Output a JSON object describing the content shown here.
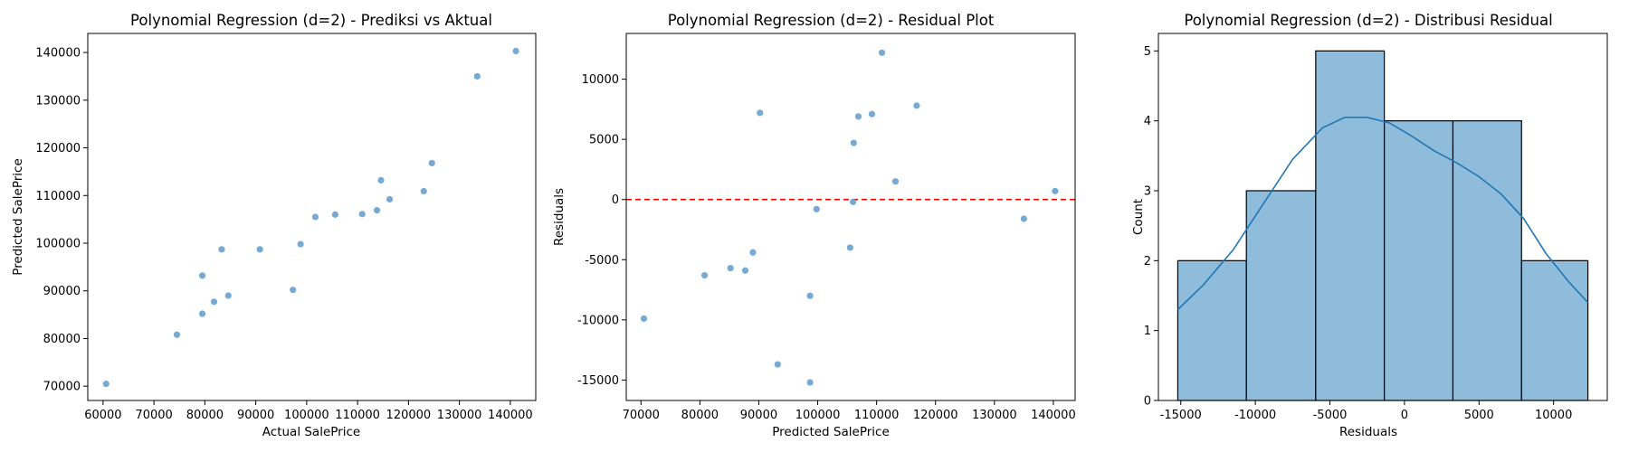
{
  "chart_data": [
    {
      "type": "scatter",
      "title": "Polynomial Regression (d=2) - Prediksi vs Aktual",
      "xlabel": "Actual SalePrice",
      "ylabel": "Predicted SalePrice",
      "xlim": [
        57000,
        145000
      ],
      "ylim": [
        67000,
        144000
      ],
      "xticks": [
        60000,
        70000,
        80000,
        90000,
        100000,
        110000,
        120000,
        130000,
        140000
      ],
      "yticks": [
        70000,
        80000,
        90000,
        100000,
        110000,
        120000,
        130000,
        140000
      ],
      "point_color": "#6fa5d2",
      "points": [
        {
          "x": 60600,
          "y": 70500
        },
        {
          "x": 74500,
          "y": 80800
        },
        {
          "x": 79500,
          "y": 85200
        },
        {
          "x": 79500,
          "y": 93200
        },
        {
          "x": 81800,
          "y": 87700
        },
        {
          "x": 83300,
          "y": 98700
        },
        {
          "x": 84600,
          "y": 89000
        },
        {
          "x": 90800,
          "y": 98700
        },
        {
          "x": 97300,
          "y": 90200
        },
        {
          "x": 98800,
          "y": 99800
        },
        {
          "x": 101700,
          "y": 105500
        },
        {
          "x": 105600,
          "y": 106000
        },
        {
          "x": 110900,
          "y": 106100
        },
        {
          "x": 113800,
          "y": 106900
        },
        {
          "x": 114600,
          "y": 113200
        },
        {
          "x": 116300,
          "y": 109200
        },
        {
          "x": 123000,
          "y": 110900
        },
        {
          "x": 124600,
          "y": 116800
        },
        {
          "x": 133500,
          "y": 135000
        },
        {
          "x": 141100,
          "y": 140300
        }
      ]
    },
    {
      "type": "scatter",
      "title": "Polynomial Regression (d=2) - Residual Plot",
      "xlabel": "Predicted SalePrice",
      "ylabel": "Residuals",
      "xlim": [
        67500,
        143700
      ],
      "ylim": [
        -16700,
        13800
      ],
      "xticks": [
        70000,
        80000,
        90000,
        100000,
        110000,
        120000,
        130000,
        140000
      ],
      "yticks": [
        -15000,
        -10000,
        -5000,
        0,
        5000,
        10000
      ],
      "point_color": "#6fa5d2",
      "reference_line": {
        "y": 0,
        "color": "#ff0000",
        "style": "dashed"
      },
      "points": [
        {
          "x": 70500,
          "y": -9900
        },
        {
          "x": 80800,
          "y": -6300
        },
        {
          "x": 85200,
          "y": -5700
        },
        {
          "x": 87700,
          "y": -5900
        },
        {
          "x": 89000,
          "y": -4400
        },
        {
          "x": 90200,
          "y": 7200
        },
        {
          "x": 93200,
          "y": -13700
        },
        {
          "x": 98700,
          "y": -15200
        },
        {
          "x": 98700,
          "y": -8000
        },
        {
          "x": 99800,
          "y": -800
        },
        {
          "x": 105500,
          "y": -4000
        },
        {
          "x": 106000,
          "y": -200
        },
        {
          "x": 106100,
          "y": 4700
        },
        {
          "x": 106900,
          "y": 6900
        },
        {
          "x": 109200,
          "y": 7100
        },
        {
          "x": 110900,
          "y": 12200
        },
        {
          "x": 113200,
          "y": 1500
        },
        {
          "x": 116800,
          "y": 7800
        },
        {
          "x": 135000,
          "y": -1600
        },
        {
          "x": 140300,
          "y": 700
        }
      ]
    },
    {
      "type": "histogram",
      "title": "Polynomial Regression (d=2) - Distribusi Residual",
      "xlabel": "Residuals",
      "ylabel": "Count",
      "xlim": [
        -16500,
        13600
      ],
      "ylim": [
        0,
        5.25
      ],
      "xticks": [
        -15000,
        -10000,
        -5000,
        0,
        5000,
        10000
      ],
      "yticks": [
        0,
        1,
        2,
        3,
        4,
        5
      ],
      "bin_edges": [
        -15200,
        -10600,
        -5950,
        -1350,
        3250,
        7850,
        12300
      ],
      "counts": [
        2,
        3,
        5,
        4,
        4,
        2
      ],
      "bar_color": "#8fbcdb",
      "kde_color": "#1f77b4",
      "kde": [
        {
          "x": -15200,
          "y": 1.3
        },
        {
          "x": -13500,
          "y": 1.65
        },
        {
          "x": -11500,
          "y": 2.15
        },
        {
          "x": -9500,
          "y": 2.8
        },
        {
          "x": -7500,
          "y": 3.45
        },
        {
          "x": -5500,
          "y": 3.9
        },
        {
          "x": -4000,
          "y": 4.05
        },
        {
          "x": -2500,
          "y": 4.05
        },
        {
          "x": -1000,
          "y": 3.97
        },
        {
          "x": 500,
          "y": 3.78
        },
        {
          "x": 2000,
          "y": 3.57
        },
        {
          "x": 3500,
          "y": 3.4
        },
        {
          "x": 5000,
          "y": 3.2
        },
        {
          "x": 6500,
          "y": 2.95
        },
        {
          "x": 8000,
          "y": 2.6
        },
        {
          "x": 9500,
          "y": 2.1
        },
        {
          "x": 11000,
          "y": 1.7
        },
        {
          "x": 12300,
          "y": 1.4
        }
      ]
    }
  ]
}
